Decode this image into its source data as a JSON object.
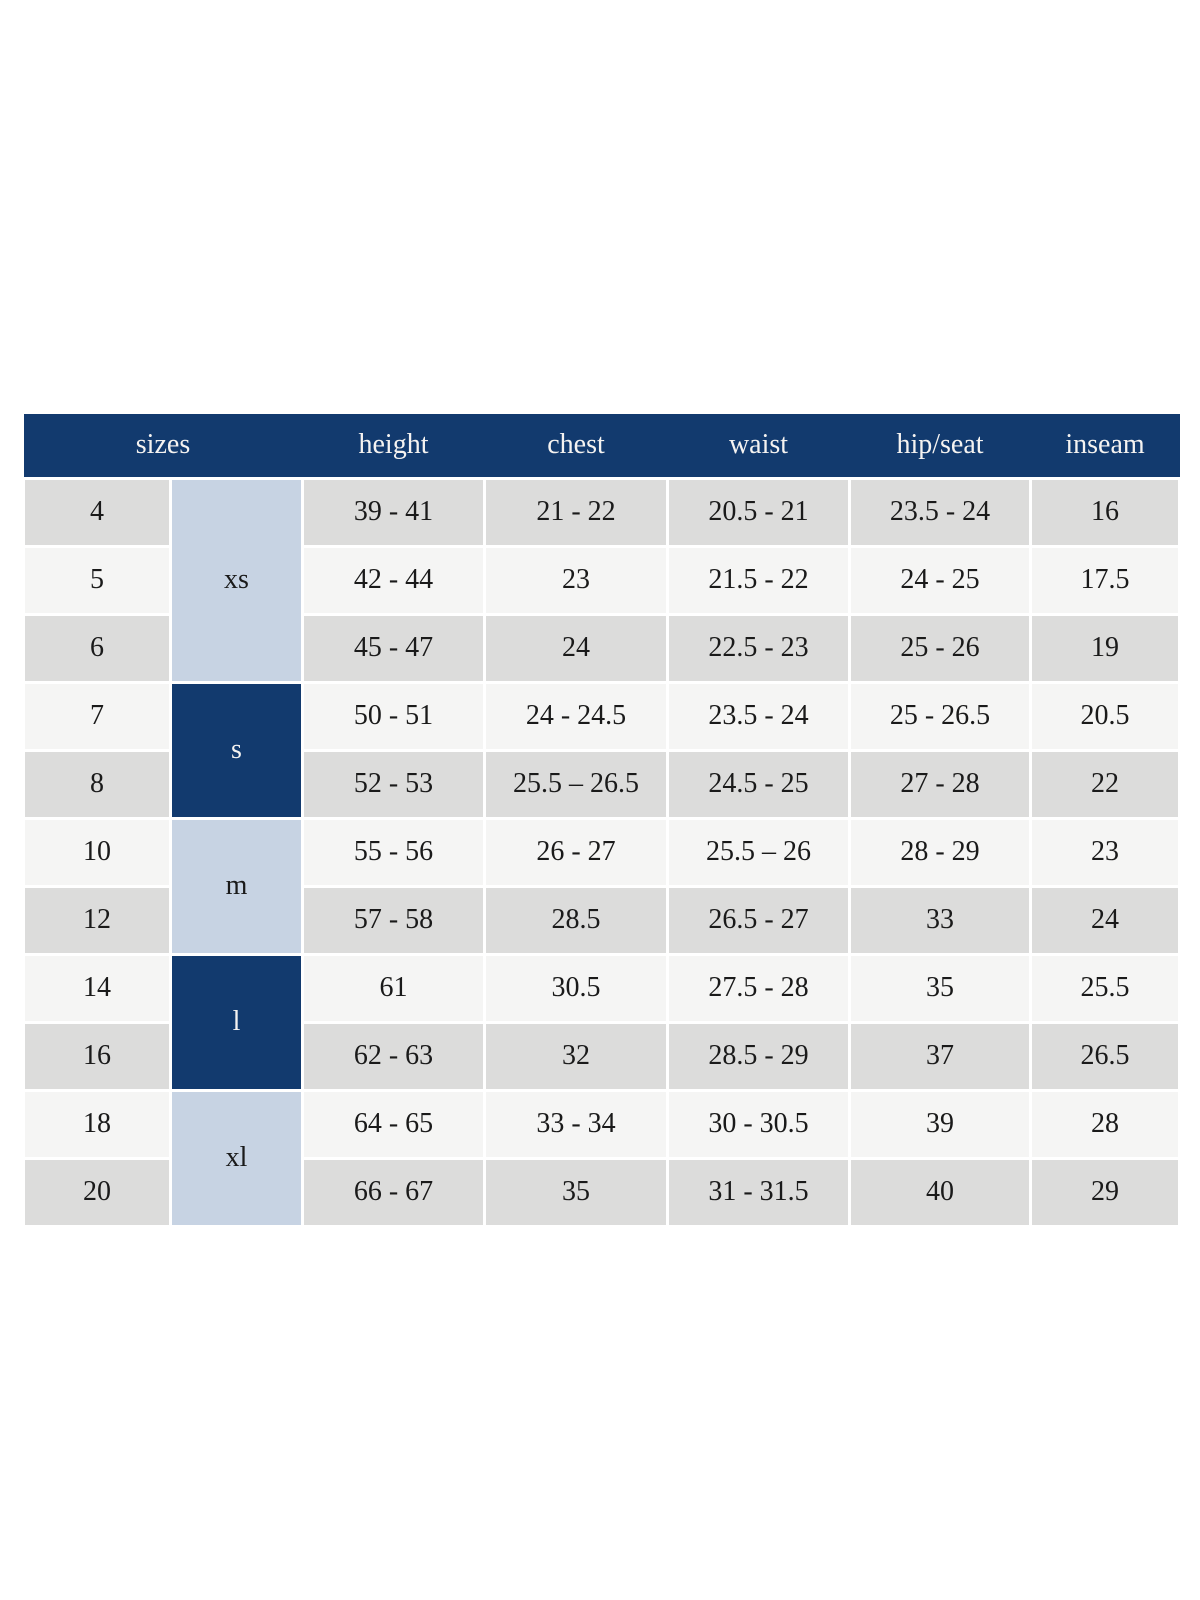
{
  "chart_data": {
    "type": "table",
    "columns": [
      "sizes",
      "height",
      "chest",
      "waist",
      "hip/seat",
      "inseam"
    ],
    "groups": [
      {
        "label": "xs",
        "span": 3,
        "variant": "light"
      },
      {
        "label": "s",
        "span": 2,
        "variant": "dark"
      },
      {
        "label": "m",
        "span": 2,
        "variant": "light"
      },
      {
        "label": "l",
        "span": 2,
        "variant": "dark"
      },
      {
        "label": "xl",
        "span": 2,
        "variant": "light"
      }
    ],
    "rows": [
      {
        "size": "4",
        "height": "39 - 41",
        "chest": "21 - 22",
        "waist": "20.5 - 21",
        "hip_seat": "23.5 - 24",
        "inseam": "16"
      },
      {
        "size": "5",
        "height": "42 - 44",
        "chest": "23",
        "waist": "21.5 - 22",
        "hip_seat": "24 - 25",
        "inseam": "17.5"
      },
      {
        "size": "6",
        "height": "45 - 47",
        "chest": "24",
        "waist": "22.5 - 23",
        "hip_seat": "25 - 26",
        "inseam": "19"
      },
      {
        "size": "7",
        "height": "50 - 51",
        "chest": "24 - 24.5",
        "waist": "23.5 - 24",
        "hip_seat": "25 - 26.5",
        "inseam": "20.5"
      },
      {
        "size": "8",
        "height": "52 - 53",
        "chest": "25.5 – 26.5",
        "waist": "24.5 - 25",
        "hip_seat": "27 - 28",
        "inseam": "22"
      },
      {
        "size": "10",
        "height": "55 - 56",
        "chest": "26 - 27",
        "waist": "25.5 – 26",
        "hip_seat": "28 - 29",
        "inseam": "23"
      },
      {
        "size": "12",
        "height": "57 - 58",
        "chest": "28.5",
        "waist": "26.5 - 27",
        "hip_seat": "33",
        "inseam": "24"
      },
      {
        "size": "14",
        "height": "61",
        "chest": "30.5",
        "waist": "27.5 - 28",
        "hip_seat": "35",
        "inseam": "25.5"
      },
      {
        "size": "16",
        "height": "62 - 63",
        "chest": "32",
        "waist": "28.5 - 29",
        "hip_seat": "37",
        "inseam": "26.5"
      },
      {
        "size": "18",
        "height": "64 - 65",
        "chest": "33 - 34",
        "waist": "30 - 30.5",
        "hip_seat": "39",
        "inseam": "28"
      },
      {
        "size": "20",
        "height": "66 - 67",
        "chest": "35",
        "waist": "31 - 31.5",
        "hip_seat": "40",
        "inseam": "29"
      }
    ]
  },
  "colors": {
    "header_bg": "#123a6e",
    "header_text": "#f5f3f1",
    "group_light_bg": "#c7d3e3",
    "group_dark_bg": "#123a6e",
    "group_dark_text": "#f5f3f1",
    "row_gray_bg": "#dcdcdb",
    "row_light_bg": "#f5f5f4",
    "cell_text": "#1a1a1a"
  }
}
